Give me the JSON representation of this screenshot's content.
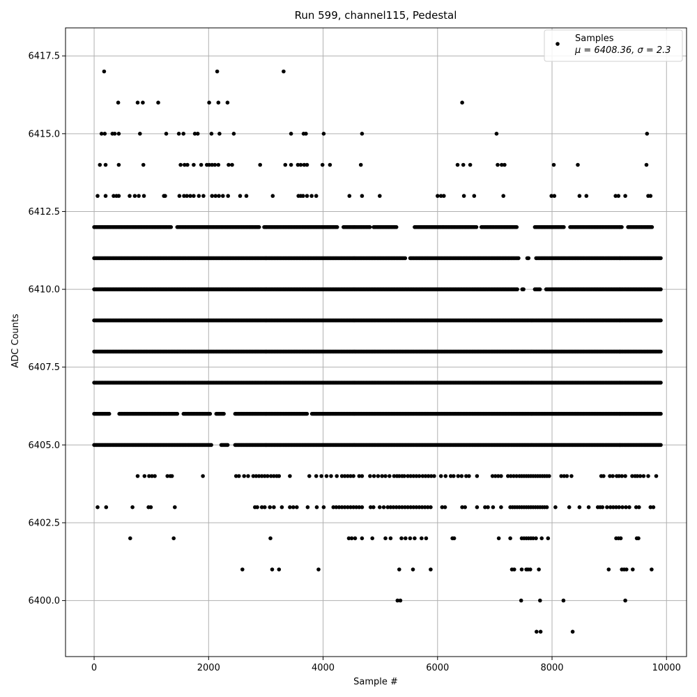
{
  "chart_data": {
    "type": "scatter",
    "title": "Run 599, channel115, Pedestal",
    "xlabel": "Sample #",
    "ylabel": "ADC Counts",
    "xlim": [
      -500,
      10350
    ],
    "ylim": [
      6398.2,
      6418.4
    ],
    "xticks": [
      0,
      2000,
      4000,
      6000,
      8000,
      10000
    ],
    "yticks": [
      6400.0,
      6402.5,
      6405.0,
      6407.5,
      6410.0,
      6412.5,
      6415.0,
      6417.5
    ],
    "xtick_labels": [
      "0",
      "2000",
      "4000",
      "6000",
      "8000",
      "10000"
    ],
    "ytick_labels": [
      "6400.0",
      "6402.5",
      "6405.0",
      "6407.5",
      "6410.0",
      "6412.5",
      "6415.0",
      "6417.5"
    ],
    "grid": true,
    "legend_position": "top-right",
    "marker_color": "#000000",
    "series": [
      {
        "name": "Samples",
        "label_line2": "μ = 6408.36, σ = 2.3",
        "points": {
          "6417": [
            175,
            2150,
            3310
          ],
          "6416": [
            420,
            760,
            850,
            1120,
            2010,
            2170,
            2330,
            6430
          ],
          "6415": [
            130,
            185,
            320,
            360,
            430,
            800,
            1260,
            1480,
            1560,
            1760,
            1810,
            2050,
            2190,
            2440,
            3440,
            3660,
            3700,
            4010,
            4680,
            7030,
            9660
          ],
          "6414": [
            100,
            200,
            430,
            860,
            1510,
            1580,
            1630,
            1740,
            1870,
            1970,
            2010,
            2060,
            2110,
            2170,
            2350,
            2410,
            2900,
            3340,
            3440,
            3560,
            3610,
            3670,
            3720,
            3990,
            4120,
            4660,
            6350,
            6450,
            6570,
            7050,
            7120,
            7170,
            8030,
            8450,
            9650
          ],
          "6413": [
            60,
            200,
            340,
            390,
            430,
            620,
            710,
            780,
            870,
            1220,
            1240,
            1490,
            1570,
            1620,
            1680,
            1740,
            1830,
            1910,
            2060,
            2120,
            2180,
            2250,
            2340,
            2550,
            2660,
            3120,
            3570,
            3610,
            3650,
            3720,
            3800,
            3880,
            4460,
            4680,
            4990,
            6000,
            6060,
            6110,
            6460,
            6640,
            7150,
            7990,
            8040,
            8480,
            8600,
            9110,
            9160,
            9280,
            9680,
            9720
          ]
        },
        "dense_rows": [
          {
            "value": 6412,
            "ranges": [
              [
                0,
                5290
              ],
              [
                5600,
                7400
              ],
              [
                7700,
                9760
              ]
            ],
            "gaps": [
              [
                1360,
                1440
              ],
              [
                2900,
                2950
              ],
              [
                4260,
                4350
              ],
              [
                4820,
                4880
              ],
              [
                6700,
                6760
              ],
              [
                8210,
                8300
              ],
              [
                9240,
                9310
              ]
            ]
          },
          {
            "value": 6411,
            "ranges": [
              [
                0,
                9900
              ]
            ],
            "gaps": [
              [
                5440,
                5500
              ],
              [
                7420,
                7560
              ],
              [
                7600,
                7700
              ]
            ]
          },
          {
            "value": 6410,
            "ranges": [
              [
                0,
                9900
              ]
            ],
            "gaps": [
              [
                7400,
                7460
              ],
              [
                7520,
                7680
              ],
              [
                7800,
                7880
              ]
            ]
          },
          {
            "value": 6409,
            "ranges": [
              [
                0,
                9900
              ]
            ],
            "gaps": []
          },
          {
            "value": 6408,
            "ranges": [
              [
                0,
                9900
              ]
            ],
            "gaps": []
          },
          {
            "value": 6407,
            "ranges": [
              [
                0,
                9900
              ]
            ],
            "gaps": []
          },
          {
            "value": 6406,
            "ranges": [
              [
                0,
                9900
              ]
            ],
            "gaps": [
              [
                280,
                420
              ],
              [
                1460,
                1540
              ],
              [
                2040,
                2120
              ],
              [
                2280,
                2450
              ],
              [
                3720,
                3800
              ]
            ]
          },
          {
            "value": 6405,
            "ranges": [
              [
                0,
                9900
              ]
            ],
            "gaps": [
              [
                2060,
                2200
              ],
              [
                2350,
                2460
              ]
            ]
          }
        ],
        "sparse_rows": {
          "6404": [
            760,
            880,
            960,
            1010,
            1060,
            1280,
            1330,
            1360,
            1900,
            2480,
            2530,
            2620,
            2690,
            2780,
            2830,
            2880,
            2930,
            2980,
            3030,
            3090,
            3140,
            3190,
            3230,
            3420,
            3760,
            3880,
            3970,
            4060,
            4140,
            4240,
            4330,
            4380,
            4430,
            4480,
            4530,
            4630,
            4680,
            4820,
            4890,
            4960,
            5030,
            5090,
            5160,
            5240,
            5290,
            5330,
            5380,
            5420,
            5480,
            5530,
            5580,
            5630,
            5680,
            5740,
            5790,
            5840,
            5890,
            5940,
            6060,
            6140,
            6230,
            6280,
            6360,
            6420,
            6500,
            6550,
            6690,
            6960,
            7010,
            7060,
            7110,
            7230,
            7280,
            7330,
            7380,
            7430,
            7470,
            7510,
            7550,
            7590,
            7630,
            7670,
            7710,
            7750,
            7790,
            7830,
            7870,
            7910,
            7950,
            8160,
            8210,
            8260,
            8340,
            8860,
            8900,
            9010,
            9060,
            9130,
            9170,
            9220,
            9280,
            9400,
            9450,
            9490,
            9540,
            9600,
            9680,
            9820
          ],
          "6403": [
            60,
            210,
            670,
            950,
            990,
            1410,
            2810,
            2850,
            2930,
            2980,
            3070,
            3140,
            3280,
            3420,
            3480,
            3540,
            3730,
            3890,
            4010,
            4180,
            4230,
            4280,
            4330,
            4380,
            4430,
            4480,
            4530,
            4580,
            4630,
            4680,
            4830,
            4880,
            4990,
            5060,
            5130,
            5180,
            5230,
            5280,
            5330,
            5380,
            5430,
            5480,
            5530,
            5580,
            5630,
            5680,
            5730,
            5780,
            5830,
            5880,
            6080,
            6130,
            6430,
            6480,
            6690,
            6830,
            6880,
            6970,
            7110,
            7270,
            7310,
            7350,
            7390,
            7430,
            7470,
            7510,
            7550,
            7590,
            7630,
            7670,
            7710,
            7750,
            7790,
            7830,
            7870,
            7910,
            8060,
            8300,
            8480,
            8640,
            8800,
            8840,
            8880,
            8960,
            9020,
            9070,
            9120,
            9170,
            9230,
            9290,
            9350,
            9470,
            9520,
            9720,
            9770
          ],
          "6402": [
            630,
            1390,
            3080,
            4450,
            4500,
            4560,
            4680,
            4860,
            5090,
            5180,
            5370,
            5440,
            5520,
            5600,
            5720,
            5800,
            6260,
            6290,
            7070,
            7270,
            7470,
            7510,
            7550,
            7590,
            7630,
            7670,
            7720,
            7820,
            7930,
            9120,
            9160,
            9200,
            9480,
            9510
          ],
          "6401": [
            2590,
            3110,
            3230,
            3920,
            5330,
            5570,
            5880,
            7300,
            7340,
            7470,
            7550,
            7580,
            7620,
            7770,
            8990,
            9220,
            9260,
            9300,
            9410,
            9740
          ],
          "6400": [
            5300,
            5350,
            7460,
            7790,
            8200,
            9280
          ],
          "6399": [
            7730,
            7800,
            8360
          ]
        }
      }
    ]
  }
}
